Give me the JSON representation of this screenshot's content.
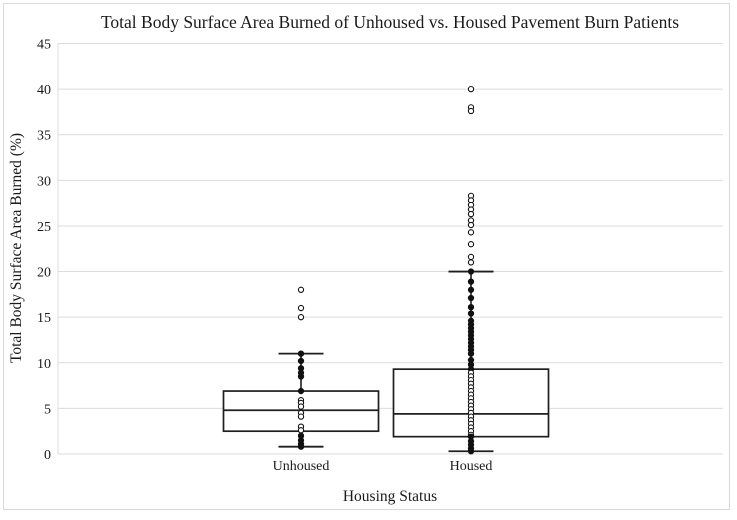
{
  "figure": {
    "title": "Total Body Surface Area Burned of Unhoused vs. Housed Pavement Burn Patients",
    "x_axis_title": "Housing Status",
    "y_axis_title": "Total Body Surface Area Burned (%)"
  },
  "chart_data": {
    "type": "boxplot",
    "title": "Total Body Surface Area Burned of Unhoused vs. Housed Pavement Burn Patients",
    "xlabel": "Housing Status",
    "ylabel": "Total Body Surface Area Burned (%)",
    "ylim": [
      0,
      45
    ],
    "yticks": [
      0,
      5,
      10,
      15,
      20,
      25,
      30,
      35,
      40,
      45
    ],
    "grid": true,
    "legend": false,
    "categories": [
      "Unhoused",
      "Housed"
    ],
    "series": [
      {
        "name": "Unhoused",
        "box": {
          "whisker_low": 0.8,
          "q1": 2.5,
          "median": 4.8,
          "q3": 6.9,
          "whisker_high": 11.0
        },
        "points": [
          18,
          16,
          15,
          11,
          10.2,
          9.4,
          8.9,
          8.5,
          6.9,
          5.9,
          5.6,
          5.2,
          4.5,
          4.1,
          3.0,
          2.6,
          2.0,
          1.5,
          1.1,
          0.8
        ]
      },
      {
        "name": "Housed",
        "box": {
          "whisker_low": 0.3,
          "q1": 1.9,
          "median": 4.4,
          "q3": 9.3,
          "whisker_high": 20.0
        },
        "points": [
          40,
          38,
          37.6,
          28.3,
          27.8,
          27.3,
          26.8,
          26.3,
          25.6,
          25.1,
          24.3,
          23.0,
          21.6,
          21.0,
          20,
          18.9,
          18,
          17.1,
          16.1,
          15.4,
          14.6,
          14.2,
          13.8,
          13.4,
          13.0,
          12.6,
          12.2,
          11.8,
          11.4,
          11.0,
          10.3,
          9.8,
          9.3,
          8.9,
          8.5,
          8.1,
          7.7,
          7.3,
          6.9,
          6.5,
          6.1,
          5.7,
          5.3,
          4.9,
          4.5,
          4.1,
          3.7,
          3.3,
          2.9,
          2.5,
          2.1,
          1.9,
          1.4,
          1.0,
          0.6,
          0.3
        ]
      }
    ]
  },
  "style": {
    "background": "#ffffff",
    "outer_border": "#d9d9d9",
    "grid_color": "#dcdcdc",
    "box_stroke": "#1f1f1f",
    "point_stroke": "#111111",
    "point_fill_open": "#ffffff",
    "text_color": "#1a1a1a"
  }
}
